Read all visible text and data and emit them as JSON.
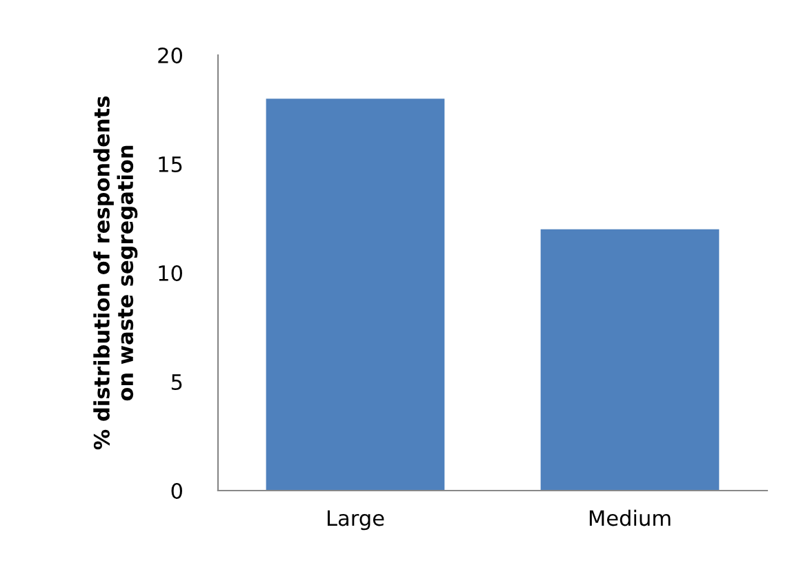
{
  "chart_data": {
    "type": "bar",
    "ylabel": "% distribution of respondents\non waste segregation",
    "categories": [
      "Large",
      "Medium"
    ],
    "values": [
      18,
      12
    ],
    "color": "#4f81bd",
    "ylim": [
      0,
      20
    ],
    "yticks": [
      0,
      5,
      10,
      15,
      20
    ],
    "grid": false,
    "legend": false
  }
}
